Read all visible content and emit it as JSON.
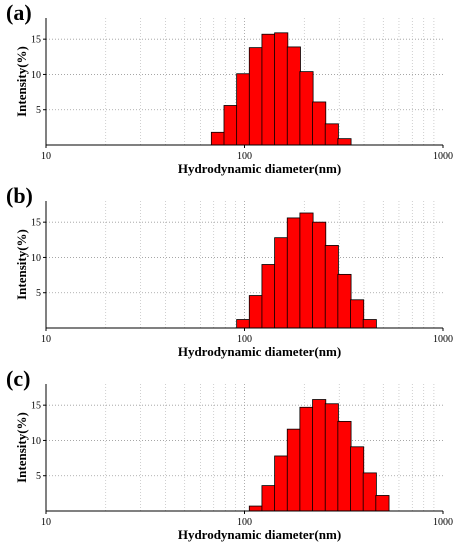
{
  "chart_data": [
    {
      "type": "bar",
      "panel_label": "(a)",
      "xlabel": "Hydrodynamic diameter(nm)",
      "ylabel": "Intensity(%)",
      "xscale": "log",
      "xlim": [
        10,
        1000
      ],
      "ylim": [
        0,
        18
      ],
      "x_ticks": [
        "10",
        "100",
        "1000"
      ],
      "y_ticks": [
        "5",
        "10",
        "15"
      ],
      "grid": "dotted",
      "bar_color": "#ff0000",
      "bars": [
        {
          "x": 68.06,
          "y": 1.8
        },
        {
          "x": 78.82,
          "y": 5.6
        },
        {
          "x": 91.28,
          "y": 10.1
        },
        {
          "x": 105.7,
          "y": 13.8
        },
        {
          "x": 122.4,
          "y": 15.7
        },
        {
          "x": 141.8,
          "y": 15.9
        },
        {
          "x": 164.2,
          "y": 13.9
        },
        {
          "x": 190.1,
          "y": 10.4
        },
        {
          "x": 220.2,
          "y": 6.1
        },
        {
          "x": 255.0,
          "y": 3.0
        },
        {
          "x": 295.3,
          "y": 0.9
        }
      ]
    },
    {
      "type": "bar",
      "panel_label": "(b)",
      "xlabel": "Hydrodynamic diameter(nm)",
      "ylabel": "Intensity(%)",
      "xscale": "log",
      "xlim": [
        10,
        1000
      ],
      "ylim": [
        0,
        18
      ],
      "x_ticks": [
        "10",
        "100",
        "1000"
      ],
      "y_ticks": [
        "5",
        "10",
        "15"
      ],
      "grid": "dotted",
      "bar_color": "#ff0000",
      "bars": [
        {
          "x": 91.28,
          "y": 1.2
        },
        {
          "x": 105.7,
          "y": 4.6
        },
        {
          "x": 122.4,
          "y": 9.0
        },
        {
          "x": 141.8,
          "y": 12.8
        },
        {
          "x": 164.2,
          "y": 15.6
        },
        {
          "x": 190.1,
          "y": 16.3
        },
        {
          "x": 220.2,
          "y": 15.0
        },
        {
          "x": 255.0,
          "y": 11.7
        },
        {
          "x": 295.3,
          "y": 7.6
        },
        {
          "x": 342.0,
          "y": 4.0
        },
        {
          "x": 396.1,
          "y": 1.2
        }
      ]
    },
    {
      "type": "bar",
      "panel_label": "(c)",
      "xlabel": "Hydrodynamic diameter(nm)",
      "ylabel": "Intensity(%)",
      "xscale": "log",
      "xlim": [
        10,
        1000
      ],
      "ylim": [
        0,
        18
      ],
      "x_ticks": [
        "10",
        "100",
        "1000"
      ],
      "y_ticks": [
        "5",
        "10",
        "15"
      ],
      "grid": "dotted",
      "bar_color": "#ff0000",
      "bars": [
        {
          "x": 105.7,
          "y": 0.7
        },
        {
          "x": 122.4,
          "y": 3.6
        },
        {
          "x": 141.8,
          "y": 7.8
        },
        {
          "x": 164.2,
          "y": 11.6
        },
        {
          "x": 190.1,
          "y": 14.7
        },
        {
          "x": 220.2,
          "y": 15.8
        },
        {
          "x": 255.0,
          "y": 15.2
        },
        {
          "x": 295.3,
          "y": 12.7
        },
        {
          "x": 342.0,
          "y": 9.1
        },
        {
          "x": 396.1,
          "y": 5.4
        },
        {
          "x": 458.7,
          "y": 2.2
        }
      ]
    }
  ]
}
